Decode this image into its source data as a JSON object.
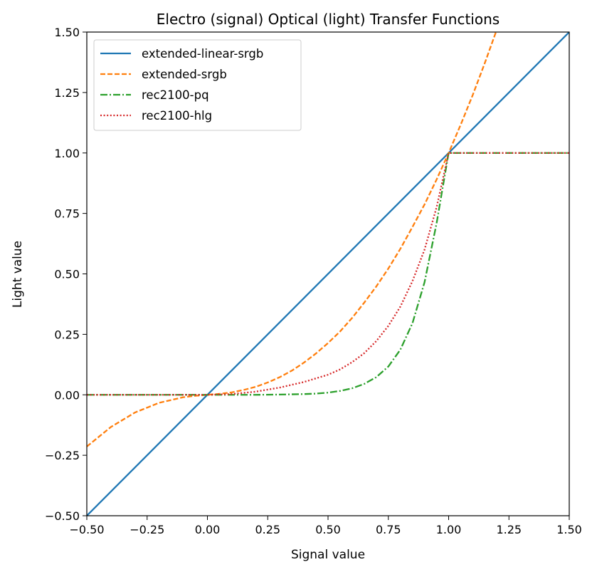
{
  "chart_data": {
    "type": "line",
    "title": "Electro (signal) Optical (light) Transfer Functions",
    "xlabel": "Signal value",
    "ylabel": "Light value",
    "xlim": [
      -0.5,
      1.5
    ],
    "ylim": [
      -0.5,
      1.5
    ],
    "xticks": [
      -0.5,
      -0.25,
      0.0,
      0.25,
      0.5,
      0.75,
      1.0,
      1.25,
      1.5
    ],
    "yticks": [
      -0.5,
      -0.25,
      0.0,
      0.25,
      0.5,
      0.75,
      1.0,
      1.25,
      1.5
    ],
    "xtick_labels": [
      "−0.50",
      "−0.25",
      "0.00",
      "0.25",
      "0.50",
      "0.75",
      "1.00",
      "1.25",
      "1.50"
    ],
    "ytick_labels": [
      "−0.50",
      "−0.25",
      "0.00",
      "0.25",
      "0.50",
      "0.75",
      "1.00",
      "1.25",
      "1.50"
    ],
    "grid": false,
    "legend_position": "top-left",
    "series": [
      {
        "name": "extended-linear-srgb",
        "color": "#1f77b4",
        "dash": "solid",
        "points": [
          [
            -0.5,
            -0.5
          ],
          [
            1.5,
            1.5
          ]
        ]
      },
      {
        "name": "extended-srgb",
        "color": "#ff7f0e",
        "dash": "dashed",
        "points": [
          [
            -0.5,
            -0.214
          ],
          [
            -0.4,
            -0.133
          ],
          [
            -0.3,
            -0.073
          ],
          [
            -0.2,
            -0.033
          ],
          [
            -0.1,
            -0.01
          ],
          [
            -0.05,
            -0.004
          ],
          [
            0.0,
            0.0
          ],
          [
            0.05,
            0.004
          ],
          [
            0.1,
            0.01
          ],
          [
            0.15,
            0.02
          ],
          [
            0.2,
            0.033
          ],
          [
            0.25,
            0.051
          ],
          [
            0.3,
            0.073
          ],
          [
            0.35,
            0.1
          ],
          [
            0.4,
            0.133
          ],
          [
            0.45,
            0.171
          ],
          [
            0.5,
            0.214
          ],
          [
            0.55,
            0.262
          ],
          [
            0.6,
            0.318
          ],
          [
            0.65,
            0.381
          ],
          [
            0.7,
            0.448
          ],
          [
            0.75,
            0.522
          ],
          [
            0.8,
            0.604
          ],
          [
            0.85,
            0.694
          ],
          [
            0.9,
            0.787
          ],
          [
            0.95,
            0.89
          ],
          [
            1.0,
            1.0
          ],
          [
            1.05,
            1.117
          ],
          [
            1.1,
            1.24
          ],
          [
            1.15,
            1.372
          ],
          [
            1.2,
            1.511
          ]
        ]
      },
      {
        "name": "rec2100-pq",
        "color": "#2ca02c",
        "dash": "dashdot",
        "points": [
          [
            -0.5,
            0.0
          ],
          [
            0.0,
            0.0
          ],
          [
            0.1,
            0.0
          ],
          [
            0.2,
            0.0
          ],
          [
            0.3,
            0.001
          ],
          [
            0.4,
            0.003
          ],
          [
            0.45,
            0.005
          ],
          [
            0.5,
            0.009
          ],
          [
            0.55,
            0.016
          ],
          [
            0.6,
            0.027
          ],
          [
            0.65,
            0.045
          ],
          [
            0.7,
            0.073
          ],
          [
            0.75,
            0.117
          ],
          [
            0.8,
            0.187
          ],
          [
            0.85,
            0.296
          ],
          [
            0.9,
            0.465
          ],
          [
            0.95,
            0.709
          ],
          [
            0.98,
            0.884
          ],
          [
            1.0,
            1.0
          ],
          [
            1.5,
            1.0
          ]
        ]
      },
      {
        "name": "rec2100-hlg",
        "color": "#d62728",
        "dash": "dotted",
        "points": [
          [
            -0.5,
            0.0
          ],
          [
            0.0,
            0.0
          ],
          [
            0.1,
            0.003
          ],
          [
            0.2,
            0.013
          ],
          [
            0.3,
            0.03
          ],
          [
            0.4,
            0.053
          ],
          [
            0.5,
            0.083
          ],
          [
            0.55,
            0.105
          ],
          [
            0.6,
            0.135
          ],
          [
            0.65,
            0.172
          ],
          [
            0.7,
            0.222
          ],
          [
            0.75,
            0.285
          ],
          [
            0.8,
            0.365
          ],
          [
            0.85,
            0.47
          ],
          [
            0.9,
            0.6
          ],
          [
            0.95,
            0.775
          ],
          [
            1.0,
            1.0
          ],
          [
            1.5,
            1.0
          ]
        ]
      }
    ]
  }
}
